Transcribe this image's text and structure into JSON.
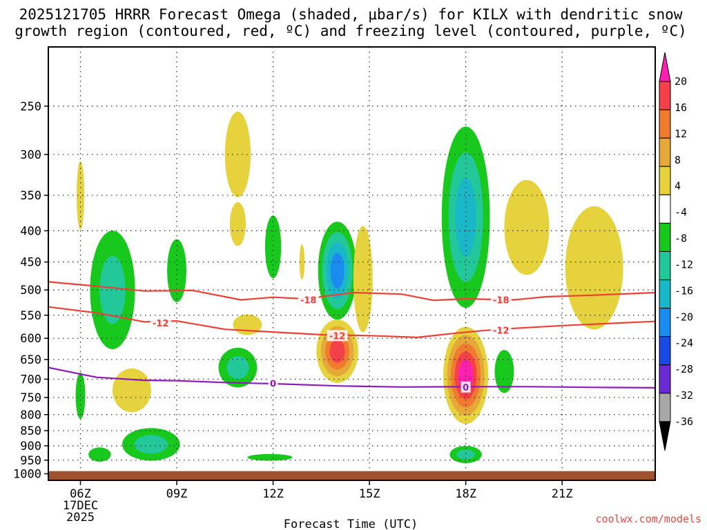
{
  "chart_data": {
    "type": "time-height contour",
    "title_line1": "2025121705 HRRR Forecast Omega (shaded, μbar/s) for KILX with dendritic snow",
    "title_line2": "growth region (contoured, red, ºC) and freezing level (contoured, purple, ºC)",
    "xlabel": "Forecast Time (UTC)",
    "credit": "coolwx.com/models",
    "x_ticks": [
      {
        "hour": 6,
        "label": "06Z",
        "sub1": "17DEC",
        "sub2": "2025"
      },
      {
        "hour": 9,
        "label": "09Z",
        "sub1": "",
        "sub2": ""
      },
      {
        "hour": 12,
        "label": "12Z",
        "sub1": "",
        "sub2": ""
      },
      {
        "hour": 15,
        "label": "15Z",
        "sub1": "",
        "sub2": ""
      },
      {
        "hour": 18,
        "label": "18Z",
        "sub1": "",
        "sub2": ""
      },
      {
        "hour": 21,
        "label": "21Z",
        "sub1": "",
        "sub2": ""
      }
    ],
    "x_range_hours": [
      5.0,
      23.9
    ],
    "y_ticks": [
      250,
      300,
      350,
      400,
      450,
      500,
      550,
      600,
      650,
      700,
      750,
      800,
      850,
      900,
      950,
      1000
    ],
    "y_range_hpa": [
      200,
      1025
    ],
    "ground_hpa": 990,
    "colorbar": {
      "labels": [
        "20",
        "16",
        "12",
        "8",
        "4",
        "-4",
        "-8",
        "-12",
        "-16",
        "-20",
        "-24",
        "-28",
        "-32",
        "-36"
      ],
      "colors": [
        "#ff1fb1",
        "#f5404a",
        "#f07a2d",
        "#e6a838",
        "#e6d23c",
        "#ffffff",
        "#18c81c",
        "#22c79a",
        "#18b8c8",
        "#1a8cf0",
        "#1a4ae6",
        "#6a2ad4",
        "#a020c0",
        "#a8a8a8"
      ]
    },
    "omega_regions": [
      {
        "t": 6.0,
        "p": 745,
        "r": [
          0.15,
          65
        ],
        "levels": [
          "#18c81c"
        ]
      },
      {
        "t": 6.0,
        "p": 350,
        "r": [
          0.12,
          45
        ],
        "levels": [
          "#e6d23c"
        ]
      },
      {
        "t": 7.0,
        "p": 500,
        "r": [
          0.7,
          110
        ],
        "levels": [
          "#18c81c",
          "#22c79a"
        ]
      },
      {
        "t": 7.6,
        "p": 730,
        "r": [
          0.6,
          60
        ],
        "levels": [
          "#e6d23c"
        ]
      },
      {
        "t": 6.6,
        "p": 930,
        "r": [
          0.35,
          25
        ],
        "levels": [
          "#18c81c"
        ]
      },
      {
        "t": 8.2,
        "p": 895,
        "r": [
          0.9,
          55
        ],
        "levels": [
          "#18c81c",
          "#22c79a"
        ]
      },
      {
        "t": 9.0,
        "p": 465,
        "r": [
          0.3,
          55
        ],
        "levels": [
          "#18c81c"
        ]
      },
      {
        "t": 10.9,
        "p": 300,
        "r": [
          0.4,
          48
        ],
        "levels": [
          "#e6d23c"
        ]
      },
      {
        "t": 10.9,
        "p": 390,
        "r": [
          0.25,
          32
        ],
        "levels": [
          "#e6d23c"
        ]
      },
      {
        "t": 11.2,
        "p": 570,
        "r": [
          0.45,
          22
        ],
        "levels": [
          "#e6d23c"
        ]
      },
      {
        "t": 10.9,
        "p": 670,
        "r": [
          0.6,
          50
        ],
        "levels": [
          "#18c81c",
          "#22c79a"
        ]
      },
      {
        "t": 12.0,
        "p": 425,
        "r": [
          0.25,
          50
        ],
        "levels": [
          "#18c81c"
        ]
      },
      {
        "t": 11.9,
        "p": 940,
        "r": [
          0.7,
          12
        ],
        "levels": [
          "#18c81c"
        ]
      },
      {
        "t": 12.9,
        "p": 450,
        "r": [
          0.08,
          30
        ],
        "levels": [
          "#e6d23c"
        ]
      },
      {
        "t": 14.0,
        "p": 465,
        "r": [
          0.6,
          85
        ],
        "levels": [
          "#18c81c",
          "#22c79a",
          "#18b8c8",
          "#1a8cf0"
        ]
      },
      {
        "t": 14.0,
        "p": 630,
        "r": [
          0.65,
          75
        ],
        "levels": [
          "#e6d23c",
          "#e6a838",
          "#f07a2d",
          "#f5404a"
        ]
      },
      {
        "t": 14.8,
        "p": 480,
        "r": [
          0.3,
          95
        ],
        "levels": [
          "#e6d23c"
        ]
      },
      {
        "t": 18.0,
        "p": 380,
        "r": [
          0.75,
          125
        ],
        "levels": [
          "#18c81c",
          "#22c79a",
          "#18b8c8"
        ]
      },
      {
        "t": 18.0,
        "p": 690,
        "r": [
          0.7,
          125
        ],
        "levels": [
          "#e6d23c",
          "#e6a838",
          "#f07a2d",
          "#f5404a",
          "#ff1fb1"
        ]
      },
      {
        "t": 19.2,
        "p": 680,
        "r": [
          0.3,
          55
        ],
        "levels": [
          "#18c81c"
        ]
      },
      {
        "t": 18.0,
        "p": 930,
        "r": [
          0.5,
          30
        ],
        "levels": [
          "#18c81c",
          "#22c79a"
        ]
      },
      {
        "t": 19.9,
        "p": 395,
        "r": [
          0.7,
          70
        ],
        "levels": [
          "#e6d23c"
        ]
      },
      {
        "t": 22.0,
        "p": 460,
        "r": [
          0.9,
          105
        ],
        "levels": [
          "#e6d23c"
        ]
      }
    ],
    "contours": [
      {
        "name": "minus-18",
        "color": "#ee3f36",
        "label": "-18",
        "points": [
          [
            5.0,
            485
          ],
          [
            6.5,
            493
          ],
          [
            8.0,
            502
          ],
          [
            9.5,
            501
          ],
          [
            11.0,
            519
          ],
          [
            12.0,
            514
          ],
          [
            13.0,
            517
          ],
          [
            14.5,
            505
          ],
          [
            16.0,
            508
          ],
          [
            17.0,
            520
          ],
          [
            18.0,
            517
          ],
          [
            19.5,
            519
          ],
          [
            20.5,
            513
          ],
          [
            22.0,
            510
          ],
          [
            23.9,
            505
          ]
        ],
        "label_at": [
          [
            13.1,
            519
          ],
          [
            19.1,
            519
          ]
        ]
      },
      {
        "name": "minus-12",
        "color": "#ee3f36",
        "label": "-12",
        "points": [
          [
            5.0,
            533
          ],
          [
            6.5,
            545
          ],
          [
            8.0,
            564
          ],
          [
            9.0,
            562
          ],
          [
            10.5,
            580
          ],
          [
            12.0,
            586
          ],
          [
            13.5,
            592
          ],
          [
            15.0,
            594
          ],
          [
            16.5,
            598
          ],
          [
            17.5,
            590
          ],
          [
            18.5,
            583
          ],
          [
            19.5,
            578
          ],
          [
            21.0,
            572
          ],
          [
            23.9,
            563
          ]
        ],
        "label_at": [
          [
            8.5,
            566
          ],
          [
            14.0,
            594
          ],
          [
            19.1,
            582
          ]
        ]
      },
      {
        "name": "freezing-0",
        "color": "#8f1aba",
        "label": "0",
        "points": [
          [
            5.0,
            670
          ],
          [
            6.5,
            695
          ],
          [
            8.0,
            703
          ],
          [
            9.0,
            704
          ],
          [
            10.5,
            709
          ],
          [
            12.0,
            712
          ],
          [
            14.0,
            718
          ],
          [
            16.0,
            721
          ],
          [
            18.0,
            720
          ],
          [
            20.0,
            720
          ],
          [
            22.0,
            722
          ],
          [
            23.9,
            723
          ]
        ],
        "label_at": [
          [
            12.0,
            711
          ],
          [
            18.0,
            721
          ]
        ]
      }
    ]
  }
}
